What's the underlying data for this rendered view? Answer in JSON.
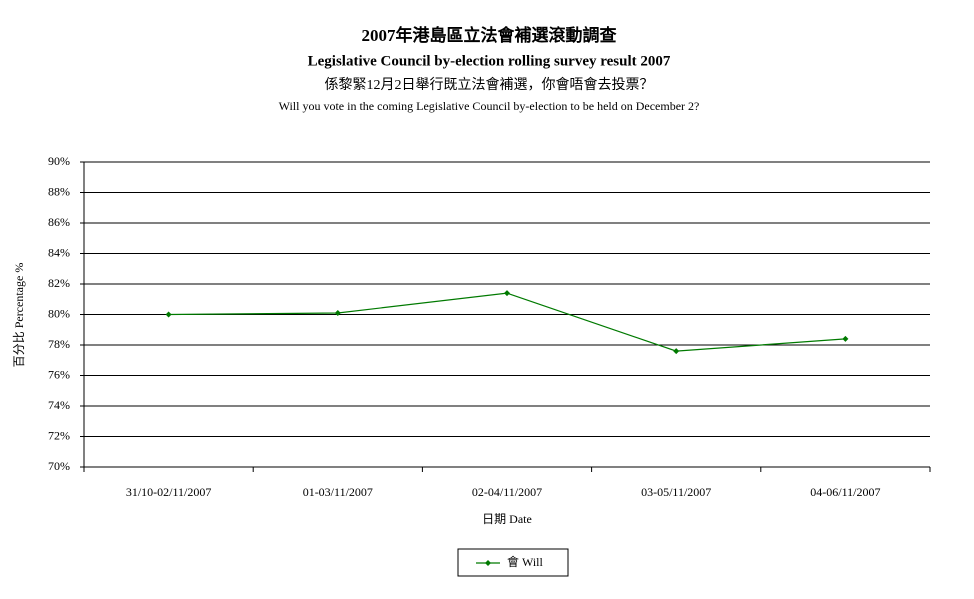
{
  "chart_data": {
    "type": "line",
    "title": "2007年港島區立法會補選滾動調查",
    "subtitle": "Legislative Council by-election rolling survey result 2007",
    "question_zh": "係黎緊12月2日舉行既立法會補選，你會唔會去投票？",
    "question_en": "Will you vote in the coming Legislative Council by-election to be held on December 2?",
    "x_label": "日期 Date",
    "y_label": "百分比 Percentage %",
    "categories": [
      "31/10-02/11/2007",
      "01-03/11/2007",
      "02-04/11/2007",
      "03-05/11/2007",
      "04-06/11/2007"
    ],
    "series": [
      {
        "name": "會 Will",
        "color": "#007a00",
        "values": [
          80.0,
          80.1,
          81.4,
          77.6,
          78.4
        ]
      }
    ],
    "ylim": [
      70,
      90
    ],
    "yticks": [
      {
        "value": 70,
        "label": "70%"
      },
      {
        "value": 72,
        "label": "72%"
      },
      {
        "value": 74,
        "label": "74%"
      },
      {
        "value": 76,
        "label": "76%"
      },
      {
        "value": 78,
        "label": "78%"
      },
      {
        "value": 80,
        "label": "80%"
      },
      {
        "value": 82,
        "label": "82%"
      },
      {
        "value": 84,
        "label": "84%"
      },
      {
        "value": 86,
        "label": "86%"
      },
      {
        "value": 88,
        "label": "88%"
      },
      {
        "value": 90,
        "label": "90%"
      }
    ],
    "grid": true,
    "legend": "bottom"
  }
}
